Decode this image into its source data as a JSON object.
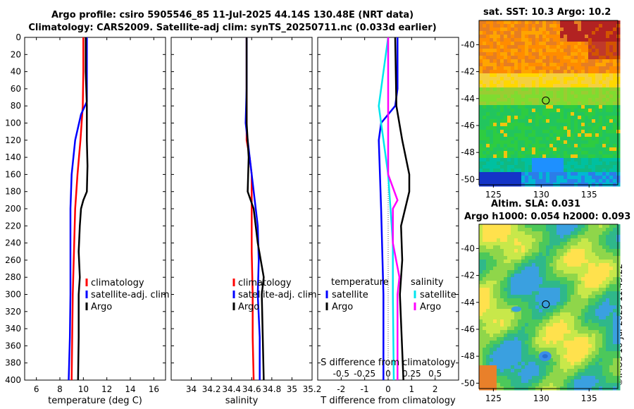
{
  "title": {
    "line1": "Argo profile: csiro 5905546_85 11-Jul-2025 44.14S 130.48E (NRT data)",
    "line2": "Climatology: CARS2009. Satellite-adj clim: synTS_20250711.nc (0.033d earlier)"
  },
  "maps": {
    "sst_title": "sat. SST: 10.3 Argo: 10.2",
    "sla_title": "Altim. SLA: 0.031",
    "sla_subtitle": "Argo h1000: 0.054 h2000: 0.093",
    "lat_ticks": [
      "-40",
      "-42",
      "-44",
      "-46",
      "-48",
      "-50"
    ],
    "lon_ticks": [
      "125",
      "130",
      "135"
    ],
    "marker": {
      "lon": 130.48,
      "lat": -44.14
    }
  },
  "credit": "©IMOS 16-Jul-2025 11:43:22",
  "colors": {
    "climatology": "#ff0000",
    "satellite": "#0000ff",
    "argo": "#000000",
    "satellite_s": "#00e5ee",
    "argo_s": "#ff00ff"
  },
  "chart_data": [
    {
      "type": "line",
      "panel": "temperature",
      "xlabel": "temperature (deg C)",
      "ylabel": "",
      "xlim": [
        5,
        17
      ],
      "ylim": [
        400,
        0
      ],
      "xticks": [
        "6",
        "8",
        "10",
        "12",
        "14",
        "16"
      ],
      "yticks": [
        "0",
        "20",
        "40",
        "60",
        "80",
        "100",
        "120",
        "140",
        "160",
        "180",
        "200",
        "220",
        "240",
        "260",
        "280",
        "300",
        "320",
        "340",
        "360",
        "380",
        "400"
      ],
      "legend": [
        "climatology",
        "satellite-adj. clim",
        "Argo"
      ],
      "series": [
        {
          "name": "climatology",
          "color": "#ff0000",
          "depth": [
            0,
            40,
            80,
            120,
            160,
            200,
            250,
            300,
            350,
            400
          ],
          "values": [
            10.0,
            10.0,
            9.95,
            9.75,
            9.5,
            9.3,
            9.2,
            9.1,
            9.05,
            9.0
          ]
        },
        {
          "name": "satellite-adj. clim",
          "color": "#0000ff",
          "depth": [
            0,
            60,
            75,
            90,
            120,
            160,
            200,
            250,
            300,
            350,
            400
          ],
          "values": [
            10.3,
            10.3,
            10.3,
            9.8,
            9.3,
            9.0,
            8.9,
            8.9,
            8.9,
            8.85,
            8.75
          ]
        },
        {
          "name": "Argo",
          "color": "#000000",
          "depth": [
            0,
            40,
            80,
            120,
            150,
            180,
            190,
            200,
            220,
            250,
            280,
            300,
            350,
            400
          ],
          "values": [
            10.2,
            10.2,
            10.3,
            10.3,
            10.35,
            10.3,
            10.0,
            9.8,
            9.7,
            9.6,
            9.7,
            9.6,
            9.6,
            9.55
          ]
        }
      ]
    },
    {
      "type": "line",
      "panel": "salinity",
      "xlabel": "salinity",
      "ylabel": "",
      "xlim": [
        33.8,
        35.2
      ],
      "ylim": [
        400,
        0
      ],
      "xticks": [
        "34",
        "34.2",
        "34.4",
        "34.6",
        "34.8",
        "35",
        "35.2"
      ],
      "legend": [
        "climatology",
        "satellite-adj. clim",
        "Argo"
      ],
      "series": [
        {
          "name": "climatology",
          "color": "#ff0000",
          "depth": [
            0,
            80,
            120,
            140,
            160,
            200,
            250,
            300,
            350,
            400
          ],
          "values": [
            34.55,
            34.55,
            34.55,
            34.58,
            34.6,
            34.6,
            34.6,
            34.61,
            34.61,
            34.62
          ]
        },
        {
          "name": "satellite-adj. clim",
          "color": "#0000ff",
          "depth": [
            0,
            60,
            100,
            130,
            160,
            190,
            220,
            260,
            300,
            350,
            400
          ],
          "values": [
            34.55,
            34.55,
            34.54,
            34.57,
            34.6,
            34.63,
            34.66,
            34.67,
            34.66,
            34.68,
            34.68
          ]
        },
        {
          "name": "Argo",
          "color": "#000000",
          "depth": [
            0,
            100,
            140,
            180,
            200,
            240,
            280,
            300,
            350,
            400
          ],
          "values": [
            34.55,
            34.55,
            34.57,
            34.56,
            34.62,
            34.66,
            34.72,
            34.7,
            34.71,
            34.72
          ]
        }
      ]
    },
    {
      "type": "line",
      "panel": "difference",
      "xlabel": "T difference from climatology",
      "xlabel2": "S difference from climatology",
      "xlim": [
        -3,
        3
      ],
      "ylim": [
        400,
        0
      ],
      "xticks": [
        "-2",
        "-1",
        "0",
        "1",
        "2"
      ],
      "xticks2": [
        "-0.5",
        "-0.25",
        "0",
        "0.25",
        "0.5"
      ],
      "legend_t_title": "temperature",
      "legend_s_title": "salinity",
      "legend": [
        "satellite",
        "Argo",
        "satellite",
        "Argo"
      ],
      "series": [
        {
          "name": "T satellite",
          "color": "#0000ff",
          "depth": [
            0,
            60,
            80,
            100,
            120,
            200,
            300,
            400
          ],
          "values": [
            0.4,
            0.4,
            0.3,
            -0.3,
            -0.4,
            -0.3,
            -0.2,
            -0.2
          ]
        },
        {
          "name": "T Argo",
          "color": "#000000",
          "depth": [
            0,
            80,
            120,
            160,
            180,
            220,
            260,
            300,
            400
          ],
          "values": [
            0.3,
            0.35,
            0.6,
            0.9,
            0.9,
            0.55,
            0.6,
            0.5,
            0.65
          ]
        },
        {
          "name": "S satellite",
          "color": "#00e5ee",
          "depth": [
            0,
            80,
            160,
            240,
            300,
            400
          ],
          "values": [
            0.0,
            -0.1,
            0.0,
            0.05,
            0.05,
            0.06
          ]
        },
        {
          "name": "S Argo",
          "color": "#ff00ff",
          "depth": [
            0,
            160,
            190,
            200,
            240,
            280,
            300,
            400
          ],
          "values": [
            0.0,
            0.0,
            0.1,
            0.05,
            0.05,
            0.12,
            0.1,
            0.1
          ]
        }
      ]
    }
  ]
}
